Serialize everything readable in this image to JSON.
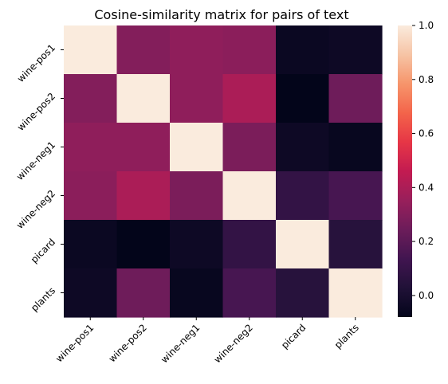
{
  "chart_data": {
    "type": "heatmap",
    "title": "Cosine-similarity matrix for pairs of text",
    "x_labels": [
      "wine-pos1",
      "wine-pos2",
      "wine-neg1",
      "wine-neg2",
      "picard",
      "plants"
    ],
    "y_labels": [
      "wine-pos1",
      "wine-pos2",
      "wine-neg1",
      "wine-neg2",
      "picard",
      "plants"
    ],
    "values": [
      [
        1.0,
        0.3,
        0.33,
        0.32,
        -0.05,
        -0.04
      ],
      [
        0.3,
        1.0,
        0.33,
        0.4,
        -0.08,
        0.25
      ],
      [
        0.33,
        0.33,
        1.0,
        0.28,
        -0.04,
        -0.06
      ],
      [
        0.32,
        0.4,
        0.28,
        1.0,
        0.09,
        0.15
      ],
      [
        -0.05,
        -0.08,
        -0.04,
        0.09,
        1.0,
        0.05
      ],
      [
        -0.04,
        0.25,
        -0.06,
        0.15,
        0.05,
        1.0
      ]
    ],
    "colorbar": {
      "min": -0.08,
      "max": 1.0,
      "ticks": [
        "0.0",
        "0.2",
        "0.4",
        "0.6",
        "0.8",
        "1.0"
      ],
      "colormap": "rocket"
    },
    "xlabel": "",
    "ylabel": ""
  }
}
